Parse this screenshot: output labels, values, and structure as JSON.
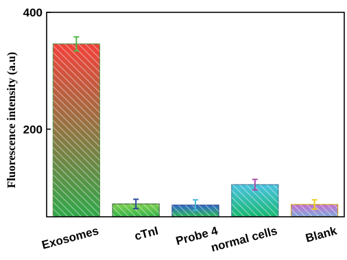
{
  "chart_data": {
    "type": "bar",
    "categories": [
      "Exosomes",
      "cTnI",
      "Probe 4",
      "normal cells",
      "Blank"
    ],
    "values": [
      346,
      72,
      70,
      105,
      71
    ],
    "errors": [
      12,
      8,
      9,
      9,
      8
    ],
    "ylabel": "Fluorescence intensity (a.u)",
    "xlabel": "",
    "ylim": [
      50,
      400
    ],
    "yticks": [
      200,
      400
    ],
    "grid": false,
    "colors": {
      "bars": [
        {
          "top": "#f2413a",
          "bottom": "#2fa84a",
          "hatch": "#ffffff",
          "edge": "#5a8f4a",
          "err": "#52b84a"
        },
        {
          "top": "#7ed04e",
          "bottom": "#34b34a",
          "hatch": "#ffffff",
          "edge": "#3a6b3a",
          "err": "#2d4a9a"
        },
        {
          "top": "#2f66c8",
          "bottom": "#2db85a",
          "hatch": "#ffffff",
          "edge": "#2a4a8a",
          "err": "#4ab8d8"
        },
        {
          "top": "#4ac2e0",
          "bottom": "#18b870",
          "hatch": "#ffffff",
          "edge": "#3a7a9a",
          "err": "#a84aa8"
        },
        {
          "top": "#c46fd0",
          "bottom": "#7fa9d9",
          "hatch": "#ffffff",
          "edge": "#c8a018",
          "err": "#e8d020"
        }
      ]
    }
  }
}
